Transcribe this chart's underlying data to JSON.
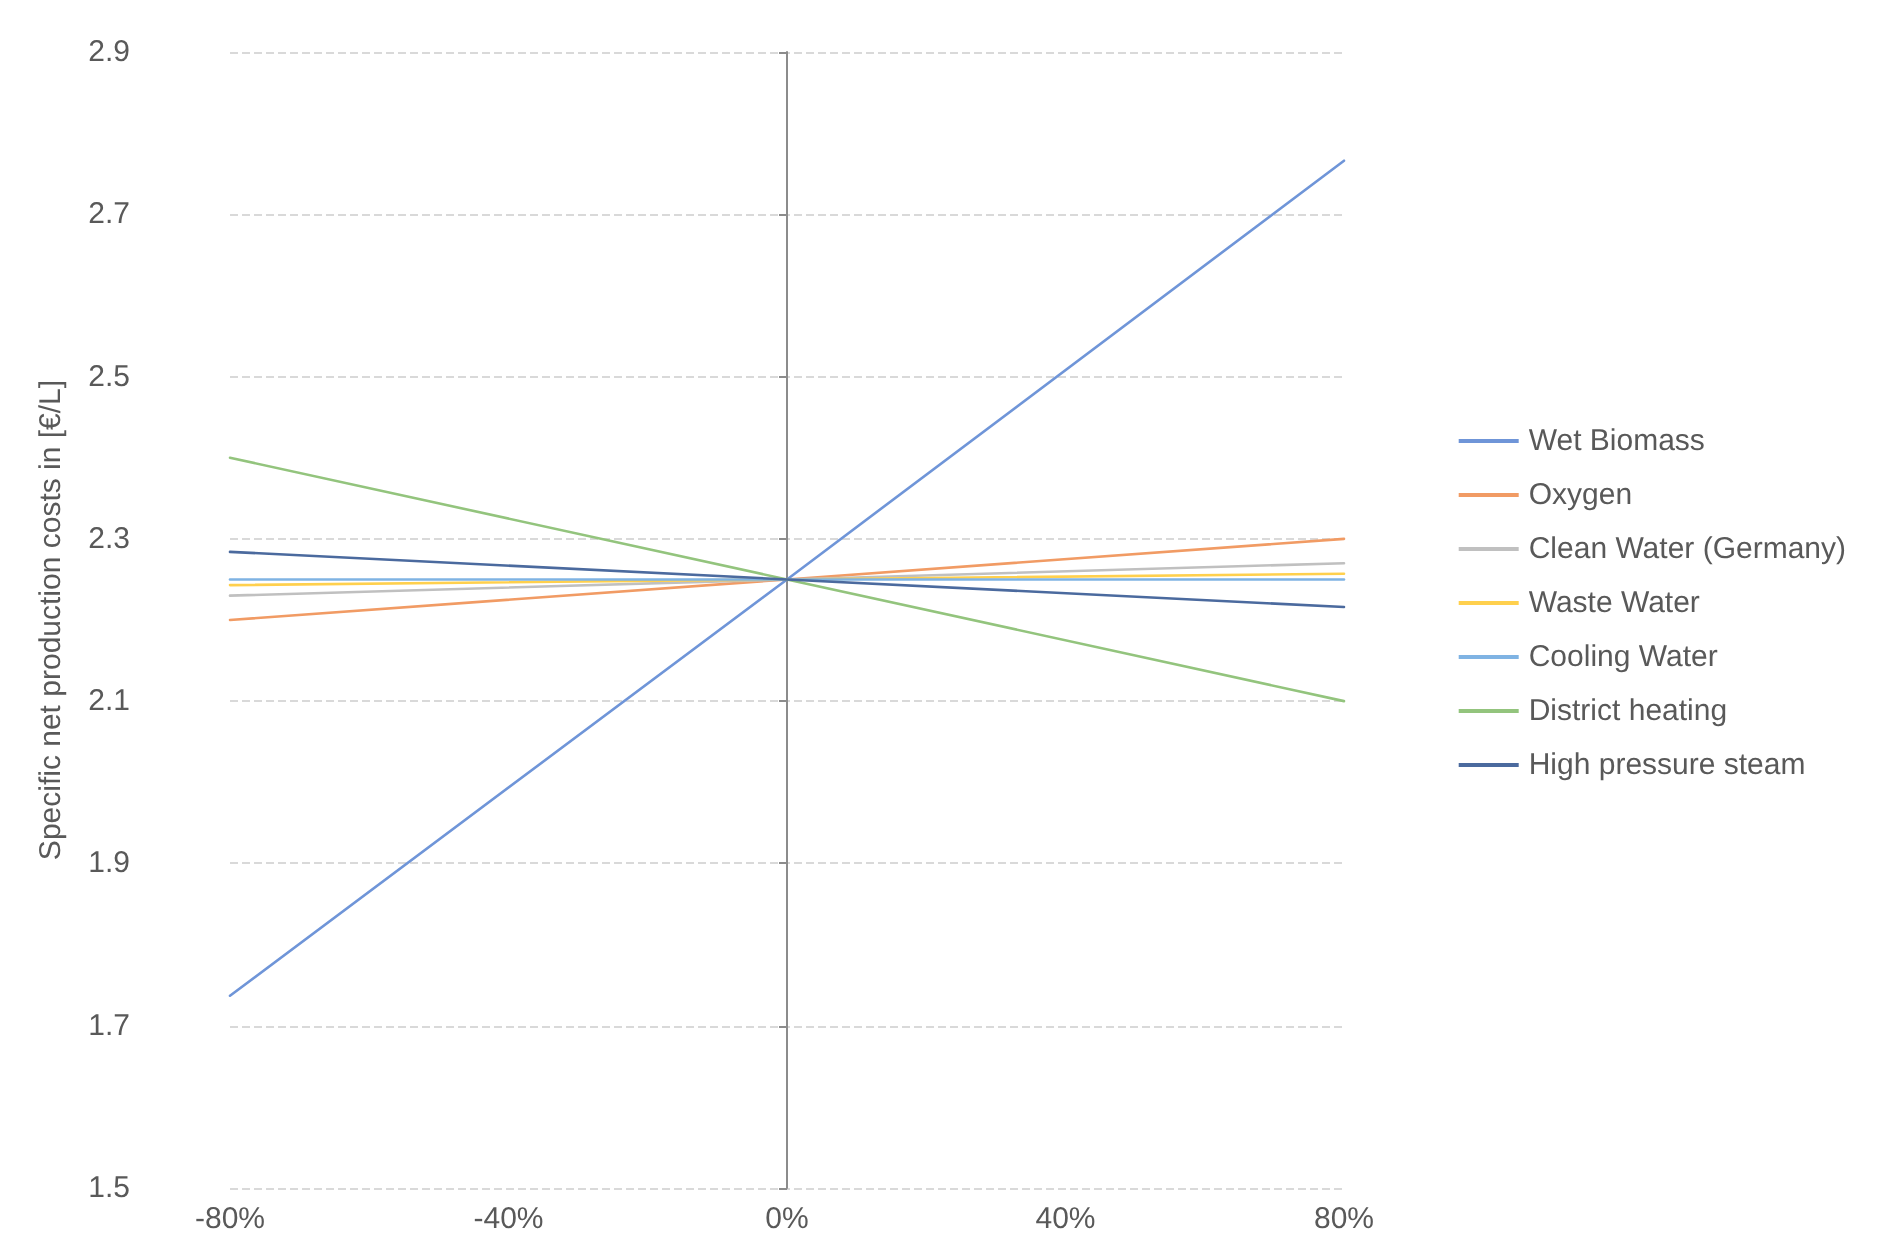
{
  "chart_data": {
    "type": "line",
    "ylabel": "Specific net production costs in [€/L]",
    "x": [
      -80,
      0,
      80
    ],
    "xlim": [
      -80,
      80
    ],
    "xticks": [
      {
        "value": -80,
        "label": "-80%"
      },
      {
        "value": -40,
        "label": "-40%"
      },
      {
        "value": 0,
        "label": "0%"
      },
      {
        "value": 40,
        "label": "40%"
      },
      {
        "value": 80,
        "label": "80%"
      }
    ],
    "ylim": [
      1.5,
      2.9
    ],
    "yticks": [
      1.5,
      1.7,
      1.9,
      2.1,
      2.3,
      2.5,
      2.7,
      2.9
    ],
    "grid": "y",
    "legend": "right",
    "marker": "none",
    "line_style": "solid",
    "series": [
      {
        "name": "Wet Biomass",
        "color": "#6f95d8",
        "values": [
          1.737,
          2.25,
          2.766
        ]
      },
      {
        "name": "Oxygen",
        "color": "#f19b64",
        "values": [
          2.2,
          2.25,
          2.3
        ]
      },
      {
        "name": "Clean Water (Germany)",
        "color": "#c0c0c0",
        "values": [
          2.23,
          2.25,
          2.27
        ]
      },
      {
        "name": "Waste Water",
        "color": "#ffd04d",
        "values": [
          2.243,
          2.25,
          2.257
        ]
      },
      {
        "name": "Cooling Water",
        "color": "#7fb3e3",
        "values": [
          2.25,
          2.25,
          2.25
        ]
      },
      {
        "name": "District heating",
        "color": "#93c47d",
        "values": [
          2.4,
          2.25,
          2.1
        ]
      },
      {
        "name": "High pressure steam",
        "color": "#4b6a9e",
        "values": [
          2.284,
          2.25,
          2.216
        ]
      }
    ]
  }
}
